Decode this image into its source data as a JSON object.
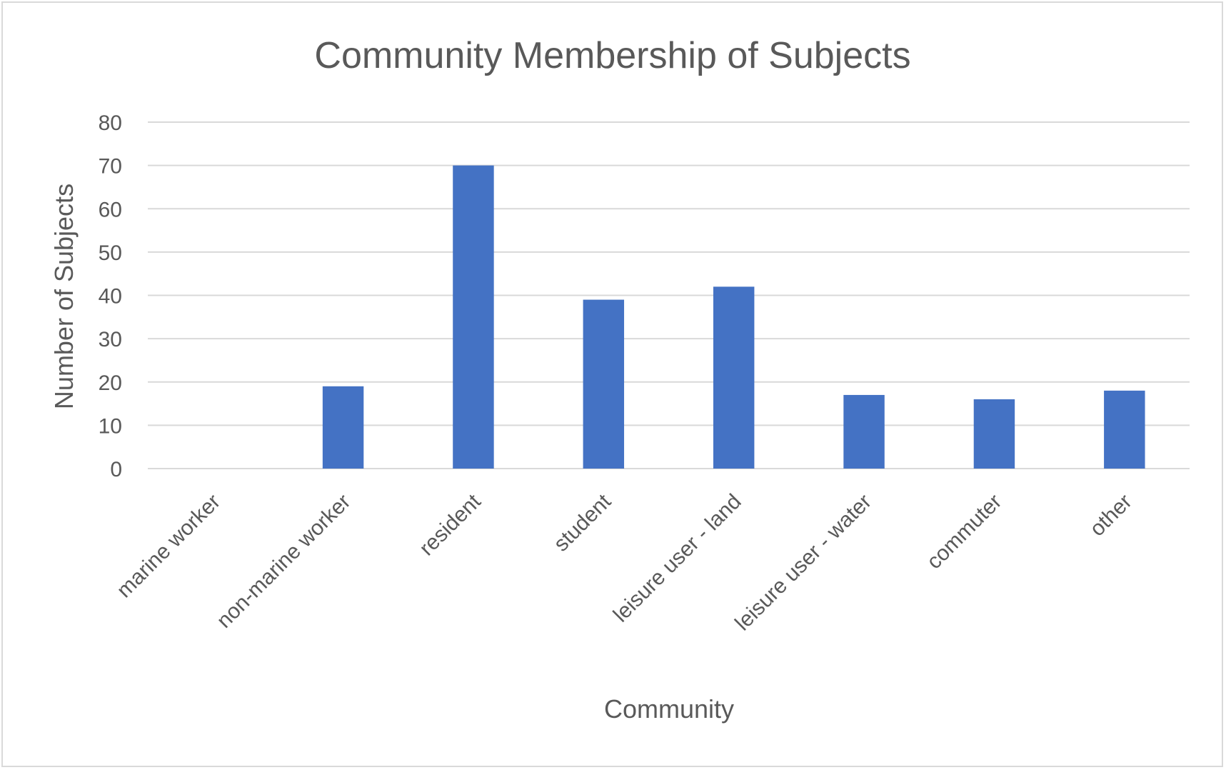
{
  "chart_data": {
    "type": "bar",
    "title": "Community Membership of Subjects",
    "xlabel": "Community",
    "ylabel": "Number of Subjects",
    "categories": [
      "marine worker",
      "non-marine worker",
      "resident",
      "student",
      "leisure user - land",
      "leisure user - water",
      "commuter",
      "other"
    ],
    "values": [
      0,
      19,
      70,
      39,
      42,
      17,
      16,
      18
    ],
    "ylim": [
      0,
      80
    ],
    "yticks": [
      0,
      10,
      20,
      30,
      40,
      50,
      60,
      70,
      80
    ],
    "grid": true,
    "legend": "none",
    "bar_color": "#4472c4",
    "grid_color": "#d9d9d9",
    "text_color": "#595959"
  }
}
